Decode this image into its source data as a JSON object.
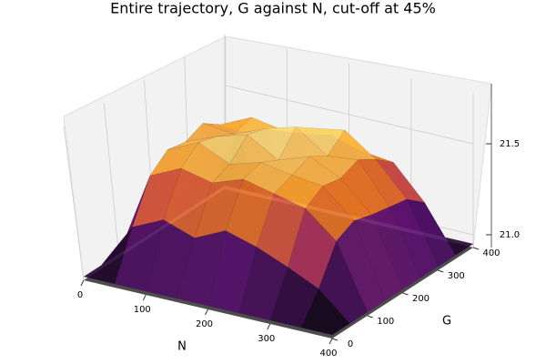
{
  "chart_data": {
    "type": "surface",
    "title": "Entire trajectory, G against N, cut-off at 45%",
    "xlabel": "N",
    "ylabel": "G",
    "x": [
      0,
      50,
      100,
      150,
      200,
      250,
      300,
      350,
      400
    ],
    "y": [
      0,
      50,
      100,
      150,
      200,
      250,
      300,
      350,
      400
    ],
    "z": [
      [
        20.95,
        20.95,
        20.95,
        20.95,
        20.95,
        20.95,
        20.95,
        20.95,
        20.95
      ],
      [
        20.95,
        21.2,
        21.28,
        21.22,
        21.3,
        21.25,
        21.18,
        21.1,
        20.95
      ],
      [
        20.95,
        21.42,
        21.5,
        21.46,
        21.52,
        21.48,
        21.44,
        21.3,
        20.95
      ],
      [
        20.95,
        21.5,
        21.58,
        21.5,
        21.55,
        21.52,
        21.5,
        21.35,
        20.95
      ],
      [
        20.95,
        21.48,
        21.55,
        21.6,
        21.5,
        21.56,
        21.48,
        21.32,
        20.95
      ],
      [
        20.95,
        21.52,
        21.5,
        21.57,
        21.62,
        21.5,
        21.52,
        21.3,
        20.95
      ],
      [
        20.95,
        21.45,
        21.53,
        21.5,
        21.55,
        21.58,
        21.46,
        21.28,
        20.95
      ],
      [
        20.95,
        21.35,
        21.4,
        21.42,
        21.45,
        21.4,
        21.38,
        21.2,
        20.95
      ],
      [
        20.95,
        20.95,
        20.95,
        20.95,
        20.95,
        20.95,
        20.95,
        20.95,
        20.95
      ]
    ],
    "xlim": [
      0,
      400
    ],
    "ylim": [
      0,
      400
    ],
    "zlim": [
      20.93,
      21.83
    ],
    "xticks": [
      0,
      100,
      200,
      300,
      400
    ],
    "yticks": [
      0,
      100,
      200,
      300,
      400
    ],
    "zticks": [
      {
        "value": 21,
        "label": "21.0"
      },
      21.5
    ],
    "colormap": "inferno"
  }
}
